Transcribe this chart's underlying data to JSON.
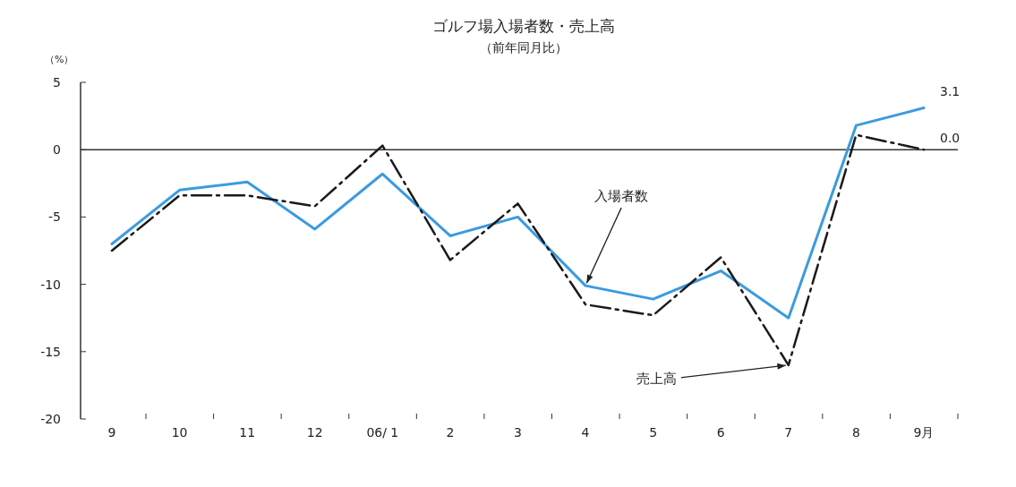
{
  "chart_data": {
    "type": "line",
    "title": "ゴルフ場入場者数・売上高",
    "subtitle": "（前年同月比）",
    "ylabel": "（%）",
    "categories": [
      "9",
      "10",
      "11",
      "12",
      "06/ 1",
      "2",
      "3",
      "4",
      "5",
      "6",
      "7",
      "8",
      "9月"
    ],
    "series": [
      {
        "color": "#3a9be0",
        "line_style": "solid",
        "values": [
          -7.0,
          -3.0,
          -2.4,
          -5.9,
          -1.8,
          -6.4,
          -5.0,
          -10.1,
          -11.1,
          -9.0,
          -12.5,
          1.8,
          3.1
        ],
        "value_labels": [
          null,
          null,
          null,
          null,
          null,
          null,
          null,
          null,
          null,
          null,
          null,
          null,
          "3.1"
        ]
      },
      {
        "color": "#1a1a1a",
        "line_style": "dashed",
        "values": [
          -7.5,
          -3.4,
          -3.4,
          -4.2,
          0.3,
          -8.2,
          -4.0,
          -11.5,
          -12.3,
          -8.0,
          -16.0,
          1.1,
          0.0
        ],
        "value_labels": [
          null,
          null,
          null,
          null,
          null,
          null,
          null,
          null,
          null,
          null,
          null,
          null,
          "0.0"
        ]
      }
    ],
    "ylim": [
      -20,
      5
    ],
    "yticks": [
      -20,
      -15,
      -10,
      -5,
      0,
      5
    ],
    "grid": false,
    "marker": "none",
    "annotations": [
      {
        "text": "入場者数",
        "x": "4",
        "y": -10.1
      },
      {
        "text": "売上高",
        "x": "7",
        "y": -16.0
      }
    ],
    "ref_lines": [
      {
        "axis": "y",
        "value": 0,
        "color": "#333333"
      }
    ]
  }
}
